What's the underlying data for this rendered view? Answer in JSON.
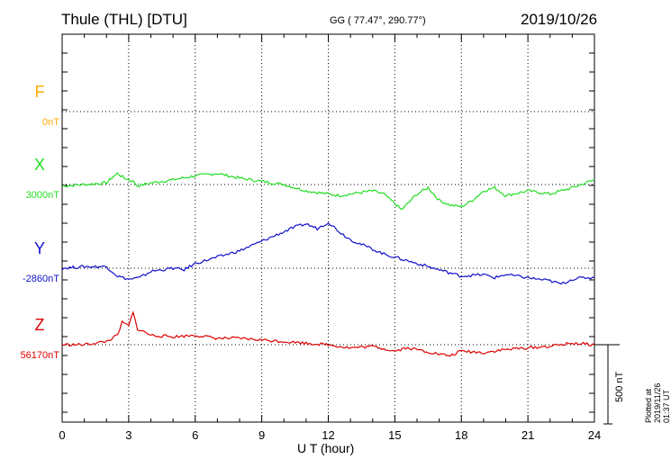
{
  "header": {
    "station": "Thule (THL)  [DTU]",
    "coords": "GG ( 77.47°, 290.77°)",
    "date": "2019/10/26"
  },
  "footer": {
    "plotted": "Plotted at 2019/11/26 01:37 UT",
    "scale_label": "500 nT"
  },
  "components": [
    {
      "label": "F",
      "baseline": "0nT",
      "color": "#ffaa00"
    },
    {
      "label": "X",
      "baseline": "3000nT",
      "color": "#22dd22"
    },
    {
      "label": "Y",
      "baseline": "-2860nT",
      "color": "#1010cc"
    },
    {
      "label": "Z",
      "baseline": "56170nT",
      "color": "#dd0000"
    }
  ],
  "chart_data": {
    "type": "line",
    "xlabel": "U T (hour)",
    "xlim": [
      0,
      24
    ],
    "xticks": [
      "0",
      "3",
      "6",
      "9",
      "12",
      "15",
      "18",
      "21",
      "24"
    ],
    "scale_bar_nT": 500,
    "grid": true,
    "series": [
      {
        "name": "X",
        "baseline_nT": 3000,
        "color": "#22dd22",
        "x": [
          0,
          1,
          2,
          2.3,
          2.5,
          2.8,
          3.2,
          3.4,
          4,
          5,
          6,
          7,
          8,
          9,
          10,
          11,
          12,
          12.5,
          13,
          14,
          14.5,
          15,
          15.3,
          16,
          16.5,
          17,
          17.5,
          18,
          18.5,
          19,
          19.5,
          20,
          21,
          22,
          23,
          24
        ],
        "y": [
          -10,
          0,
          10,
          50,
          70,
          40,
          20,
          -10,
          10,
          30,
          55,
          70,
          40,
          20,
          0,
          -40,
          -60,
          -70,
          -60,
          -40,
          -60,
          -120,
          -160,
          -60,
          -20,
          -100,
          -130,
          -140,
          -100,
          -40,
          -20,
          -70,
          -40,
          -60,
          -20,
          30
        ]
      },
      {
        "name": "Y",
        "baseline_nT": -2860,
        "color": "#1010cc",
        "x": [
          0,
          1,
          2,
          2.5,
          3,
          3.5,
          4,
          5,
          5.5,
          6,
          6.5,
          7,
          8,
          9,
          10,
          10.5,
          11,
          11.5,
          12,
          12.5,
          13,
          14,
          14.5,
          15,
          15.5,
          16,
          16.5,
          17,
          17.5,
          18,
          19,
          19.5,
          20,
          21,
          22,
          22.5,
          23,
          23.5,
          24
        ],
        "y": [
          0,
          10,
          10,
          -50,
          -70,
          -60,
          -20,
          0,
          -10,
          30,
          50,
          70,
          110,
          170,
          230,
          260,
          280,
          250,
          290,
          230,
          180,
          120,
          90,
          70,
          50,
          30,
          10,
          -10,
          -30,
          -50,
          -40,
          -60,
          -40,
          -60,
          -80,
          -100,
          -70,
          -60,
          -60
        ]
      },
      {
        "name": "Z",
        "baseline_nT": 56170,
        "color": "#dd0000",
        "x": [
          0,
          1,
          2,
          2.5,
          2.7,
          3,
          3.2,
          3.4,
          4,
          5,
          6,
          7,
          8,
          9,
          10,
          11,
          12,
          13,
          14,
          15,
          15.5,
          16,
          17,
          17.5,
          18,
          19,
          20,
          21,
          22,
          23,
          24
        ],
        "y": [
          0,
          0,
          20,
          60,
          140,
          120,
          200,
          100,
          60,
          50,
          60,
          40,
          40,
          30,
          20,
          10,
          0,
          -20,
          -10,
          -40,
          -20,
          -30,
          -60,
          -70,
          -40,
          -50,
          -30,
          -20,
          -10,
          10,
          0
        ]
      }
    ]
  }
}
